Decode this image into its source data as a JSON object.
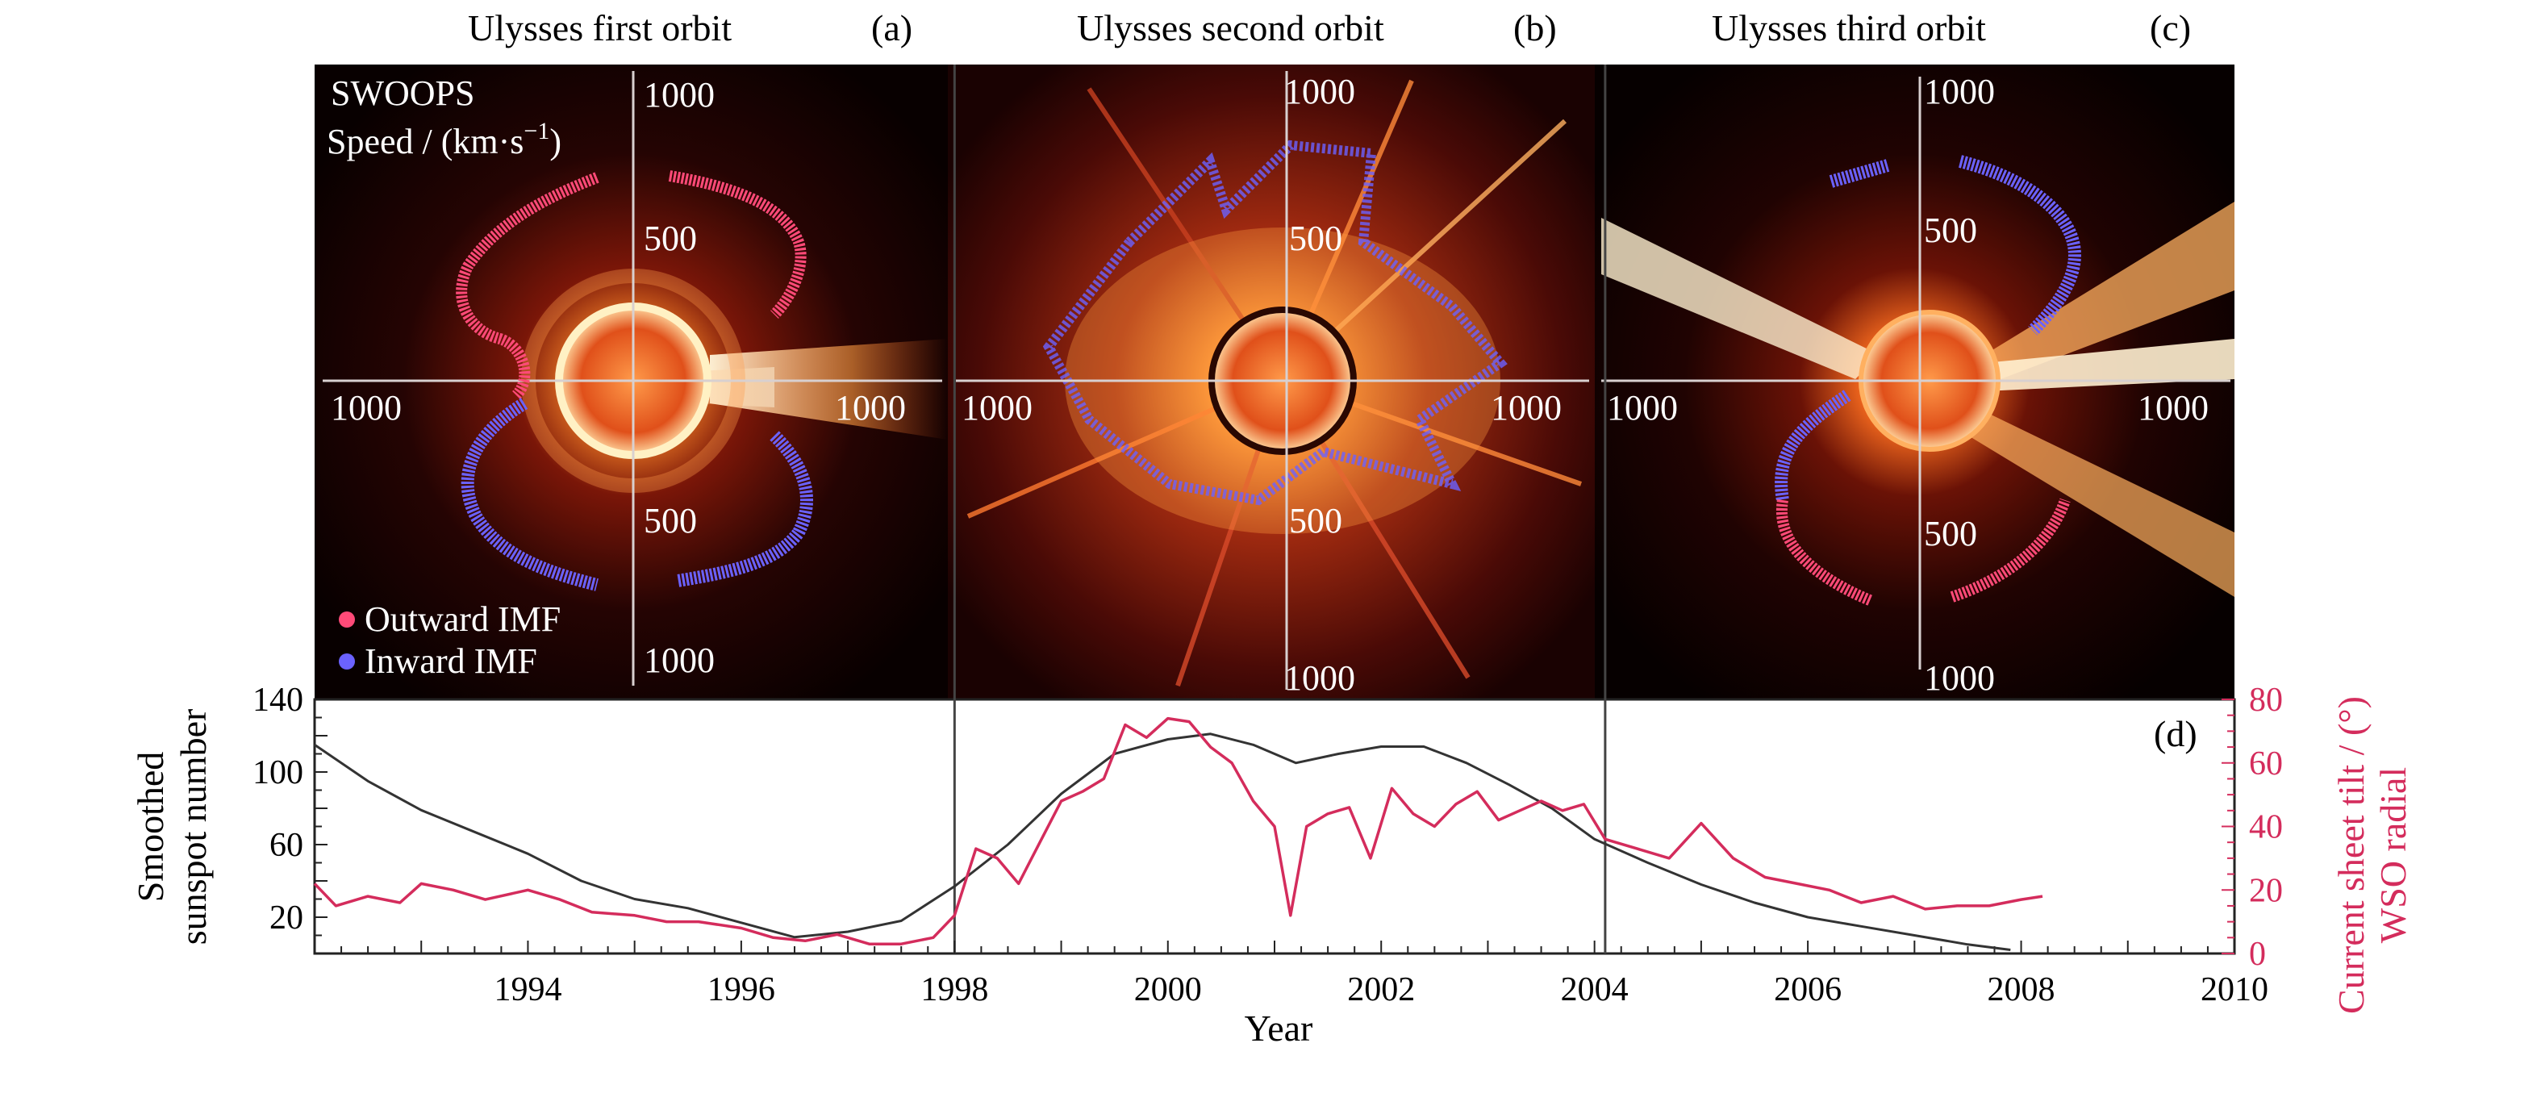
{
  "titles": {
    "a": "Ulysses first orbit",
    "b": "Ulysses second orbit",
    "c": "Ulysses third orbit",
    "a_tag": "(a)",
    "b_tag": "(b)",
    "c_tag": "(c)",
    "d_tag": "(d)"
  },
  "polar_panels": {
    "instrument": "SWOOPS",
    "speed_label": "Speed / (km·s",
    "speed_sup": "−1",
    "speed_close": ")",
    "radial_ticks": [
      "1000",
      "500"
    ],
    "legend": {
      "outward": "Outward IMF",
      "inward": "Inward IMF",
      "outward_color": "#ff4a78",
      "inward_color": "#6b62ff"
    }
  },
  "chart_data": {
    "type": "line",
    "xlabel": "Year",
    "ylabel_left_line1": "Smoothed",
    "ylabel_left_line2": "sunspot number",
    "ylabel_right_line1": "Current sheet tilt / (°)",
    "ylabel_right_line2": "WSO radial",
    "xlim": [
      1992.0,
      2010.0
    ],
    "ylim_left": [
      0,
      140
    ],
    "ylim_right": [
      0,
      80
    ],
    "x_ticks": [
      1994,
      1996,
      1998,
      2000,
      2002,
      2004,
      2006,
      2008,
      2010
    ],
    "y_ticks_left": [
      20,
      60,
      100,
      140
    ],
    "y_ticks_right": [
      0,
      20,
      40,
      60,
      80
    ],
    "orbit_boundaries": [
      1998.0,
      2004.1
    ],
    "series": [
      {
        "name": "Smoothed sunspot number",
        "axis": "left",
        "color": "#333333",
        "x": [
          1992.0,
          1992.5,
          1993.0,
          1993.5,
          1994.0,
          1994.5,
          1995.0,
          1995.5,
          1996.0,
          1996.5,
          1997.0,
          1997.5,
          1998.0,
          1998.5,
          1999.0,
          1999.5,
          2000.0,
          2000.4,
          2000.8,
          2001.2,
          2001.6,
          2002.0,
          2002.4,
          2002.8,
          2003.2,
          2003.6,
          2004.0,
          2004.5,
          2005.0,
          2005.5,
          2006.0,
          2006.5,
          2007.0,
          2007.5,
          2007.9
        ],
        "y": [
          115,
          95,
          79,
          67,
          55,
          40,
          30,
          25,
          17,
          9,
          12,
          18,
          37,
          60,
          88,
          110,
          118,
          121,
          115,
          105,
          110,
          114,
          114,
          105,
          93,
          80,
          63,
          50,
          38,
          28,
          20,
          15,
          10,
          5,
          2
        ]
      },
      {
        "name": "Current sheet tilt (WSO radial)",
        "axis": "right",
        "color": "#d42c5c",
        "x": [
          1992.0,
          1992.2,
          1992.5,
          1992.8,
          1993.0,
          1993.3,
          1993.6,
          1994.0,
          1994.3,
          1994.6,
          1995.0,
          1995.3,
          1995.6,
          1996.0,
          1996.3,
          1996.6,
          1996.9,
          1997.2,
          1997.5,
          1997.8,
          1998.0,
          1998.2,
          1998.4,
          1998.6,
          1998.8,
          1999.0,
          1999.2,
          1999.4,
          1999.6,
          1999.8,
          2000.0,
          2000.2,
          2000.4,
          2000.6,
          2000.8,
          2001.0,
          2001.15,
          2001.3,
          2001.5,
          2001.7,
          2001.9,
          2002.1,
          2002.3,
          2002.5,
          2002.7,
          2002.9,
          2003.1,
          2003.3,
          2003.5,
          2003.7,
          2003.9,
          2004.1,
          2004.4,
          2004.7,
          2005.0,
          2005.3,
          2005.6,
          2005.9,
          2006.2,
          2006.5,
          2006.8,
          2007.1,
          2007.4,
          2007.7,
          2008.0,
          2008.2
        ],
        "y": [
          22,
          15,
          18,
          16,
          22,
          20,
          17,
          20,
          17,
          13,
          12,
          10,
          10,
          8,
          5,
          4,
          6,
          3,
          3,
          5,
          12,
          33,
          30,
          22,
          35,
          48,
          51,
          55,
          72,
          68,
          74,
          73,
          65,
          60,
          48,
          40,
          12,
          40,
          44,
          46,
          30,
          52,
          44,
          40,
          47,
          51,
          42,
          45,
          48,
          45,
          47,
          36,
          33,
          30,
          41,
          30,
          24,
          22,
          20,
          16,
          18,
          14,
          15,
          15,
          17,
          18
        ]
      }
    ]
  }
}
